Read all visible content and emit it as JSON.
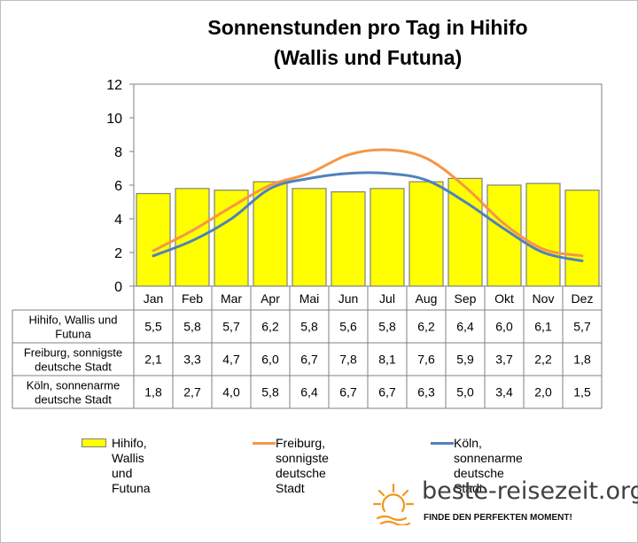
{
  "title_line1": "Sonnenstunden pro Tag in Hihifo",
  "title_line2": "(Wallis und Futuna)",
  "colors": {
    "bar_fill": "#ffff00",
    "bar_stroke": "#808080",
    "freiburg_line": "#f79646",
    "koeln_line": "#4f81bd",
    "sun_icon": "#f7941d"
  },
  "chart_data": {
    "type": "bar",
    "categories": [
      "Jan",
      "Feb",
      "Mar",
      "Apr",
      "Mai",
      "Jun",
      "Jul",
      "Aug",
      "Sep",
      "Okt",
      "Nov",
      "Dez"
    ],
    "ylim": [
      0,
      12
    ],
    "yticks": [
      "0",
      "2",
      "4",
      "6",
      "8",
      "10",
      "12"
    ],
    "grid": false,
    "legend_position": "bottom",
    "series": [
      {
        "name": "Hihifo, Wallis und Futuna",
        "type": "bar",
        "values": [
          5.5,
          5.8,
          5.7,
          6.2,
          5.8,
          5.6,
          5.8,
          6.2,
          6.4,
          6.0,
          6.1,
          5.7
        ],
        "labels": [
          "5,5",
          "5,8",
          "5,7",
          "6,2",
          "5,8",
          "5,6",
          "5,8",
          "6,2",
          "6,4",
          "6,0",
          "6,1",
          "5,7"
        ]
      },
      {
        "name": "Freiburg, sonnigste deutsche Stadt",
        "type": "line",
        "values": [
          2.1,
          3.3,
          4.7,
          6.0,
          6.7,
          7.8,
          8.1,
          7.6,
          5.9,
          3.7,
          2.2,
          1.8
        ],
        "labels": [
          "2,1",
          "3,3",
          "4,7",
          "6,0",
          "6,7",
          "7,8",
          "8,1",
          "7,6",
          "5,9",
          "3,7",
          "2,2",
          "1,8"
        ]
      },
      {
        "name": "Köln, sonnenarme deutsche Stadt",
        "type": "line",
        "values": [
          1.8,
          2.7,
          4.0,
          5.8,
          6.4,
          6.7,
          6.7,
          6.3,
          5.0,
          3.4,
          2.0,
          1.5
        ],
        "labels": [
          "1,8",
          "2,7",
          "4,0",
          "5,8",
          "6,4",
          "6,7",
          "6,7",
          "6,3",
          "5,0",
          "3,4",
          "2,0",
          "1,5"
        ]
      }
    ]
  },
  "table_row_labels": [
    "Hihifo, Wallis und\nFutuna",
    "Freiburg, sonnigste\ndeutsche Stadt",
    "Köln, sonnenarme\ndeutsche Stadt"
  ],
  "legend": [
    {
      "text": "Hihifo, Wallis und\nFutuna",
      "key": "bar"
    },
    {
      "text": "Freiburg, sonnigste\ndeutsche Stadt",
      "key": "freiburg"
    },
    {
      "text": "Köln, sonnenarme\ndeutsche Stadt",
      "key": "koeln"
    }
  ],
  "brand": {
    "name": "beste-reisezeit.org",
    "slogan": "FINDE DEN PERFEKTEN MOMENT!",
    "icon": "sun-icon"
  }
}
